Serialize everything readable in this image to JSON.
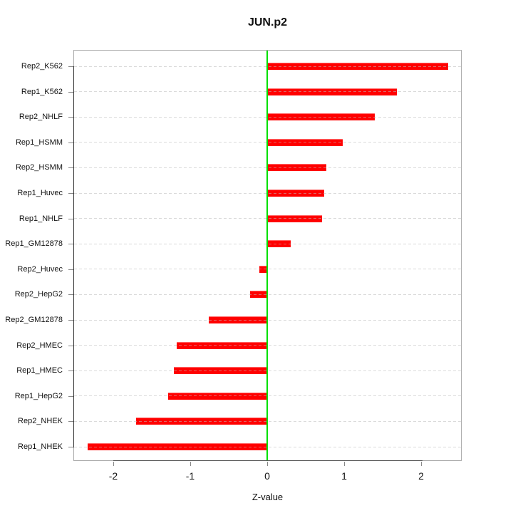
{
  "title": "JUN.p2",
  "chart_data": {
    "type": "bar",
    "orientation": "horizontal",
    "title": "JUN.p2",
    "xlabel": "Z-value",
    "ylabel": "",
    "categories": [
      "Rep2_K562",
      "Rep1_K562",
      "Rep2_NHLF",
      "Rep1_HSMM",
      "Rep2_HSMM",
      "Rep1_Huvec",
      "Rep1_NHLF",
      "Rep1_GM12878",
      "Rep2_Huvec",
      "Rep2_HepG2",
      "Rep2_GM12878",
      "Rep2_HMEC",
      "Rep1_HMEC",
      "Rep1_HepG2",
      "Rep2_NHEK",
      "Rep1_NHEK"
    ],
    "values": [
      2.34,
      1.68,
      1.39,
      0.97,
      0.76,
      0.73,
      0.7,
      0.3,
      -0.1,
      -0.22,
      -0.76,
      -1.18,
      -1.21,
      -1.29,
      -1.7,
      -2.33
    ],
    "xlim": [
      -2.52,
      2.53
    ],
    "x_ticks": [
      -2,
      -1,
      0,
      1,
      2
    ],
    "x_tick_labels": [
      "-2",
      "-1",
      "0",
      "1",
      "2"
    ],
    "zero_reference_line": 0,
    "grid": "dashed light horizontal guide line across each category row",
    "legend": "none",
    "colors": {
      "bar": "#ff0000",
      "zero_line": "#00e000",
      "frame": "#a9a9a9",
      "guide_dashes": "#dedede",
      "axis_segment": "#444444",
      "text": "#111111"
    }
  }
}
